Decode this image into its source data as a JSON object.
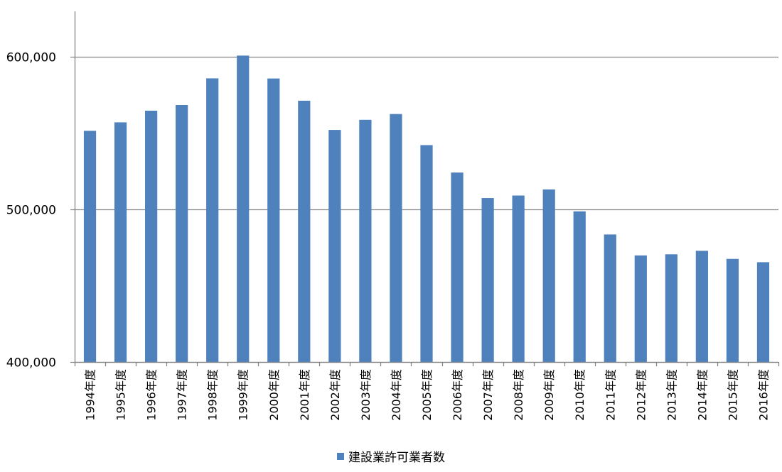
{
  "chart_data": {
    "type": "bar",
    "categories": [
      "1994年度",
      "1995年度",
      "1996年度",
      "1997年度",
      "1998年度",
      "1999年度",
      "2000年度",
      "2001年度",
      "2002年度",
      "2003年度",
      "2004年度",
      "2005年度",
      "2006年度",
      "2007年度",
      "2008年度",
      "2009年度",
      "2010年度",
      "2011年度",
      "2012年度",
      "2013年度",
      "2014年度",
      "2015年度",
      "2016年度"
    ],
    "series": [
      {
        "name": "建設業許可業者数",
        "values": [
          551661,
          557175,
          564849,
          568548,
          586045,
          600980,
          585959,
          571388,
          552210,
          558857,
          562661,
          542264,
          524273,
          507528,
          509174,
          513196,
          498806,
          483639,
          469900,
          470639,
          472921,
          467635,
          465454
        ]
      }
    ],
    "ylim": [
      400000,
      630000
    ],
    "yticks": [
      400000,
      500000,
      600000
    ],
    "ytick_labels": [
      "400,000",
      "500,000",
      "600,000"
    ],
    "grid": true,
    "legend_position": "bottom",
    "bar_color": "#4f81bd",
    "grid_color": "#868686"
  }
}
